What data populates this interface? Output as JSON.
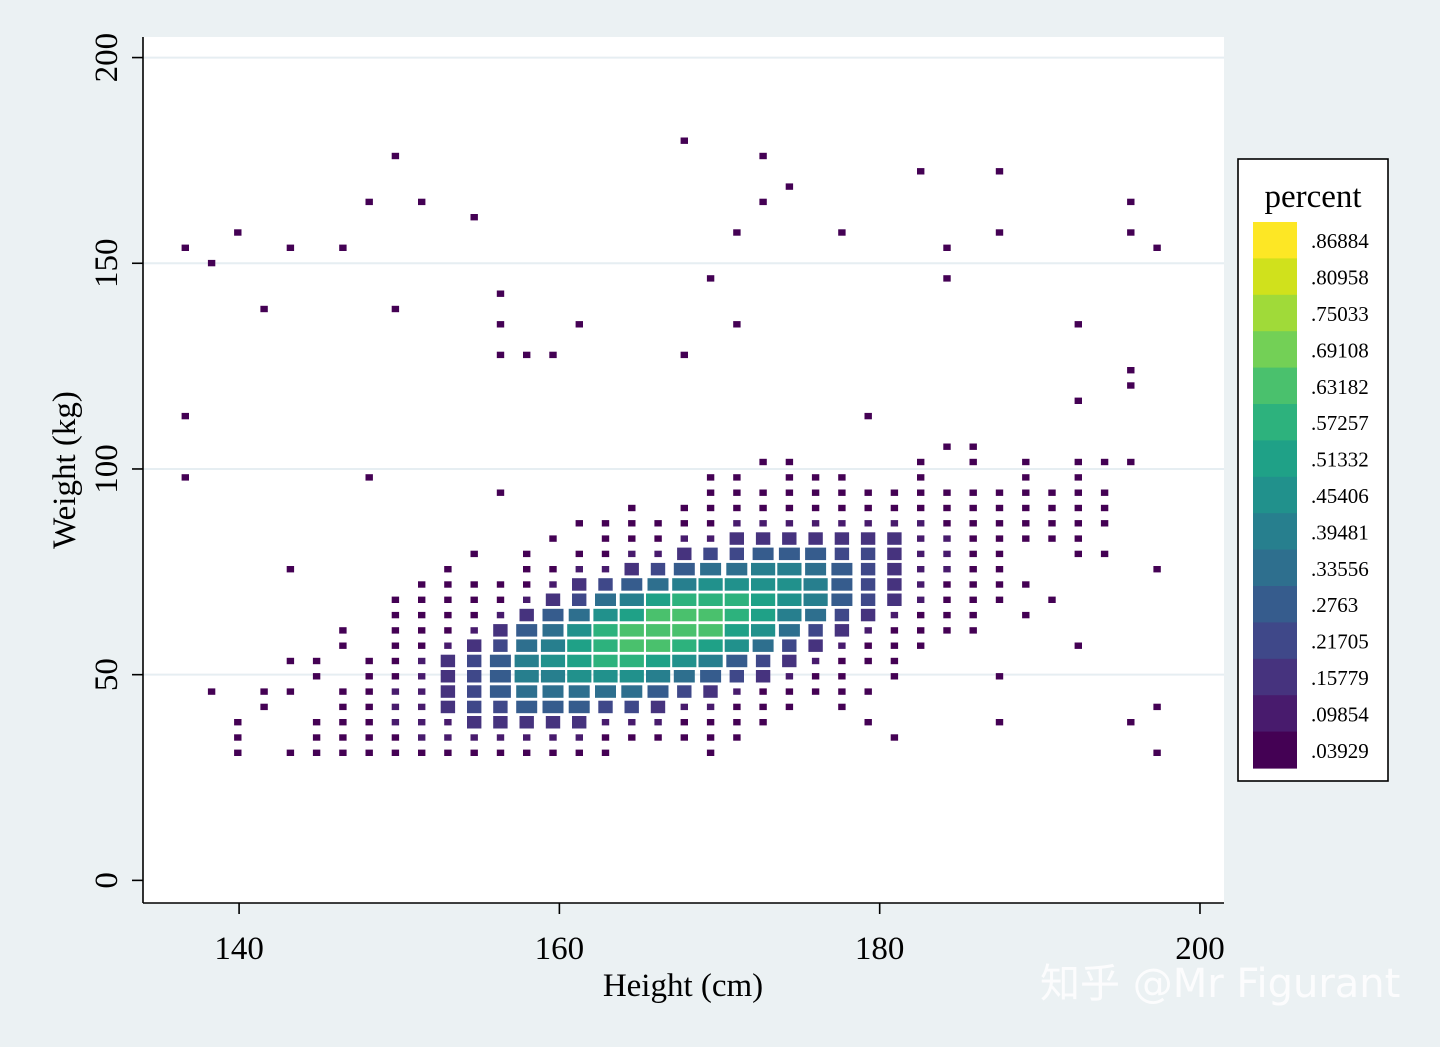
{
  "chart_data": {
    "type": "heatmap",
    "xlabel": "Height (cm)",
    "ylabel": "Weight (kg)",
    "xlim": [
      134,
      201.5
    ],
    "ylim": [
      -5.5,
      205
    ],
    "x_ticks": [
      140,
      160,
      180,
      200
    ],
    "y_ticks": [
      0,
      50,
      100,
      150,
      200
    ],
    "grid": "horizontal",
    "cell_size": {
      "x": 1.64,
      "y": 3.72
    },
    "legend": {
      "title": "percent",
      "placement": "right",
      "levels": [
        {
          "label": ".86884",
          "color": "#fde725"
        },
        {
          "label": ".80958",
          "color": "#d0e11c"
        },
        {
          "label": ".75033",
          "color": "#a0da39"
        },
        {
          "label": ".69108",
          "color": "#73d056"
        },
        {
          "label": ".63182",
          "color": "#4ac16d"
        },
        {
          "label": ".57257",
          "color": "#2db27d"
        },
        {
          "label": ".51332",
          "color": "#1fa187"
        },
        {
          "label": ".45406",
          "color": "#21918c"
        },
        {
          "label": ".39481",
          "color": "#277f8e"
        },
        {
          "label": ".33556",
          "color": "#2e6f8e"
        },
        {
          "label": ".2763",
          "color": "#365c8d"
        },
        {
          "label": ".21705",
          "color": "#3f4889"
        },
        {
          "label": ".15779",
          "color": "#46337e"
        },
        {
          "label": ".09854",
          "color": "#481b6d"
        },
        {
          "label": ".03929",
          "color": "#440154"
        }
      ]
    },
    "peak_cells": [
      {
        "x": 164.9,
        "y": 61.0,
        "level": 0
      },
      {
        "x": 166.5,
        "y": 61.0,
        "level": 0
      },
      {
        "x": 164.9,
        "y": 64.7,
        "level": 1
      },
      {
        "x": 166.5,
        "y": 64.7,
        "level": 0
      },
      {
        "x": 163.3,
        "y": 61.0,
        "level": 1
      },
      {
        "x": 171.5,
        "y": 79.7,
        "level": 0
      },
      {
        "x": 167.4,
        "y": 72.2,
        "level": 1
      },
      {
        "x": 175.6,
        "y": 75.9,
        "level": 1
      },
      {
        "x": 171.5,
        "y": 72.2,
        "level": 2
      },
      {
        "x": 173.2,
        "y": 72.2,
        "level": 3
      },
      {
        "x": 173.2,
        "y": 68.5,
        "level": 3
      },
      {
        "x": 160.0,
        "y": 61.0,
        "level": 3
      },
      {
        "x": 161.7,
        "y": 57.3,
        "level": 3
      },
      {
        "x": 158.4,
        "y": 53.6,
        "level": 3
      },
      {
        "x": 160.0,
        "y": 53.6,
        "level": 3
      },
      {
        "x": 168.2,
        "y": 68.5,
        "level": 2
      },
      {
        "x": 169.9,
        "y": 75.9,
        "level": 4
      },
      {
        "x": 178.1,
        "y": 83.4,
        "level": 4
      }
    ]
  },
  "watermark": "知乎 @Mr Figurant"
}
